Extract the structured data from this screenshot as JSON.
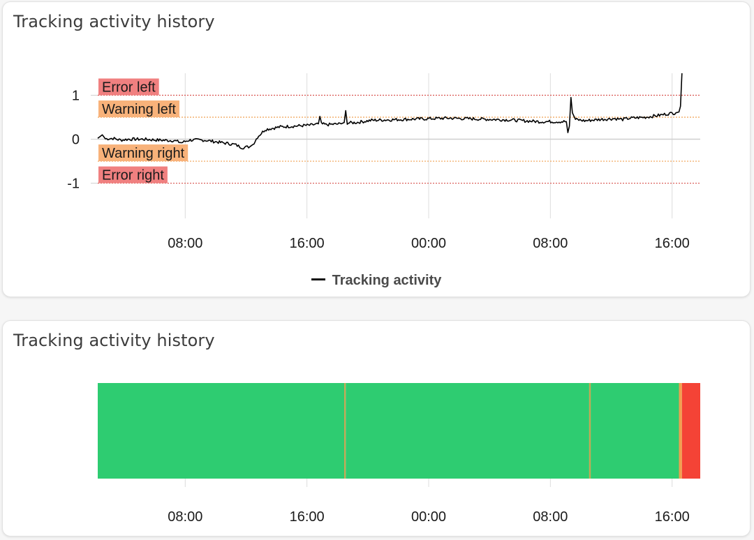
{
  "chart_data": [
    {
      "type": "line",
      "title": "Tracking activity history",
      "x_tick_labels": [
        "08:00",
        "16:00",
        "00:00",
        "08:00",
        "16:00"
      ],
      "y_ticks": [
        {
          "value": 1,
          "label": "1"
        },
        {
          "value": 0,
          "label": "0"
        },
        {
          "value": -1,
          "label": "-1"
        }
      ],
      "ylim": [
        -1.8,
        1.5
      ],
      "x_unit": "hours from day-1 02:15",
      "xlim": [
        0,
        39.6
      ],
      "grid": true,
      "legend_position": "bottom-center",
      "series": [
        {
          "name": "Tracking activity",
          "color": "#000000",
          "points": [
            [
              0,
              0.02
            ],
            [
              0.3,
              0.1
            ],
            [
              0.5,
              0.01
            ],
            [
              1,
              0.02
            ],
            [
              1.5,
              -0.02
            ],
            [
              2,
              0.0
            ],
            [
              3,
              0.0
            ],
            [
              4,
              -0.02
            ],
            [
              5,
              -0.03
            ],
            [
              5.5,
              -0.08
            ],
            [
              6,
              -0.02
            ],
            [
              7,
              -0.02
            ],
            [
              8,
              -0.07
            ],
            [
              9,
              -0.12
            ],
            [
              9.5,
              -0.19
            ],
            [
              10,
              -0.17
            ],
            [
              10.2,
              -0.12
            ],
            [
              10.5,
              0.05
            ],
            [
              11,
              0.22
            ],
            [
              12,
              0.28
            ],
            [
              13,
              0.3
            ],
            [
              14,
              0.32
            ],
            [
              14.5,
              0.35
            ],
            [
              14.6,
              0.52
            ],
            [
              14.7,
              0.35
            ],
            [
              15,
              0.33
            ],
            [
              16,
              0.35
            ],
            [
              16.2,
              0.38
            ],
            [
              16.3,
              0.65
            ],
            [
              16.4,
              0.37
            ],
            [
              17,
              0.38
            ],
            [
              18,
              0.43
            ],
            [
              19,
              0.44
            ],
            [
              20,
              0.45
            ],
            [
              21,
              0.46
            ],
            [
              22,
              0.47
            ],
            [
              23,
              0.48
            ],
            [
              24,
              0.47
            ],
            [
              25,
              0.46
            ],
            [
              26,
              0.45
            ],
            [
              27,
              0.44
            ],
            [
              28,
              0.42
            ],
            [
              29,
              0.4
            ],
            [
              30,
              0.4
            ],
            [
              30.8,
              0.4
            ],
            [
              30.9,
              0.15
            ],
            [
              31,
              0.3
            ],
            [
              31.1,
              0.95
            ],
            [
              31.2,
              0.6
            ],
            [
              31.4,
              0.45
            ],
            [
              32,
              0.42
            ],
            [
              33,
              0.45
            ],
            [
              34,
              0.47
            ],
            [
              34.5,
              0.45
            ],
            [
              35,
              0.48
            ],
            [
              36,
              0.5
            ],
            [
              37,
              0.55
            ],
            [
              37.5,
              0.58
            ],
            [
              38,
              0.6
            ],
            [
              38.2,
              0.62
            ],
            [
              38.3,
              0.75
            ],
            [
              38.4,
              1.5
            ]
          ]
        }
      ],
      "annotations": [
        {
          "label": "Error left",
          "value": 1,
          "color": "#f08080",
          "line_color": "#d9534f"
        },
        {
          "label": "Warning left",
          "value": 0.5,
          "color": "#f8b27a",
          "line_color": "#f0a050"
        },
        {
          "label": "Warning right",
          "value": -0.5,
          "color": "#f8b27a",
          "line_color": "#f0a050"
        },
        {
          "label": "Error right",
          "value": -1,
          "color": "#f08080",
          "line_color": "#d9534f"
        }
      ]
    },
    {
      "type": "bar",
      "title": "Tracking activity history",
      "x_tick_labels": [
        "08:00",
        "16:00",
        "00:00",
        "08:00",
        "16:00"
      ],
      "x_unit": "hours from day-1 02:15",
      "xlim": [
        0,
        39.6
      ],
      "grid": true,
      "segments": [
        {
          "start": 0,
          "end": 16.2,
          "status": "ok",
          "color": "#2ecc71"
        },
        {
          "start": 16.2,
          "end": 16.3,
          "status": "warning",
          "color": "#c9a550"
        },
        {
          "start": 16.3,
          "end": 32.3,
          "status": "ok",
          "color": "#2ecc71"
        },
        {
          "start": 32.3,
          "end": 32.4,
          "status": "warning",
          "color": "#c9a550"
        },
        {
          "start": 32.4,
          "end": 38.2,
          "status": "ok",
          "color": "#2ecc71"
        },
        {
          "start": 38.2,
          "end": 38.4,
          "status": "warning",
          "color": "#f0a050"
        },
        {
          "start": 38.4,
          "end": 39.6,
          "status": "error",
          "color": "#f44336"
        }
      ]
    }
  ]
}
